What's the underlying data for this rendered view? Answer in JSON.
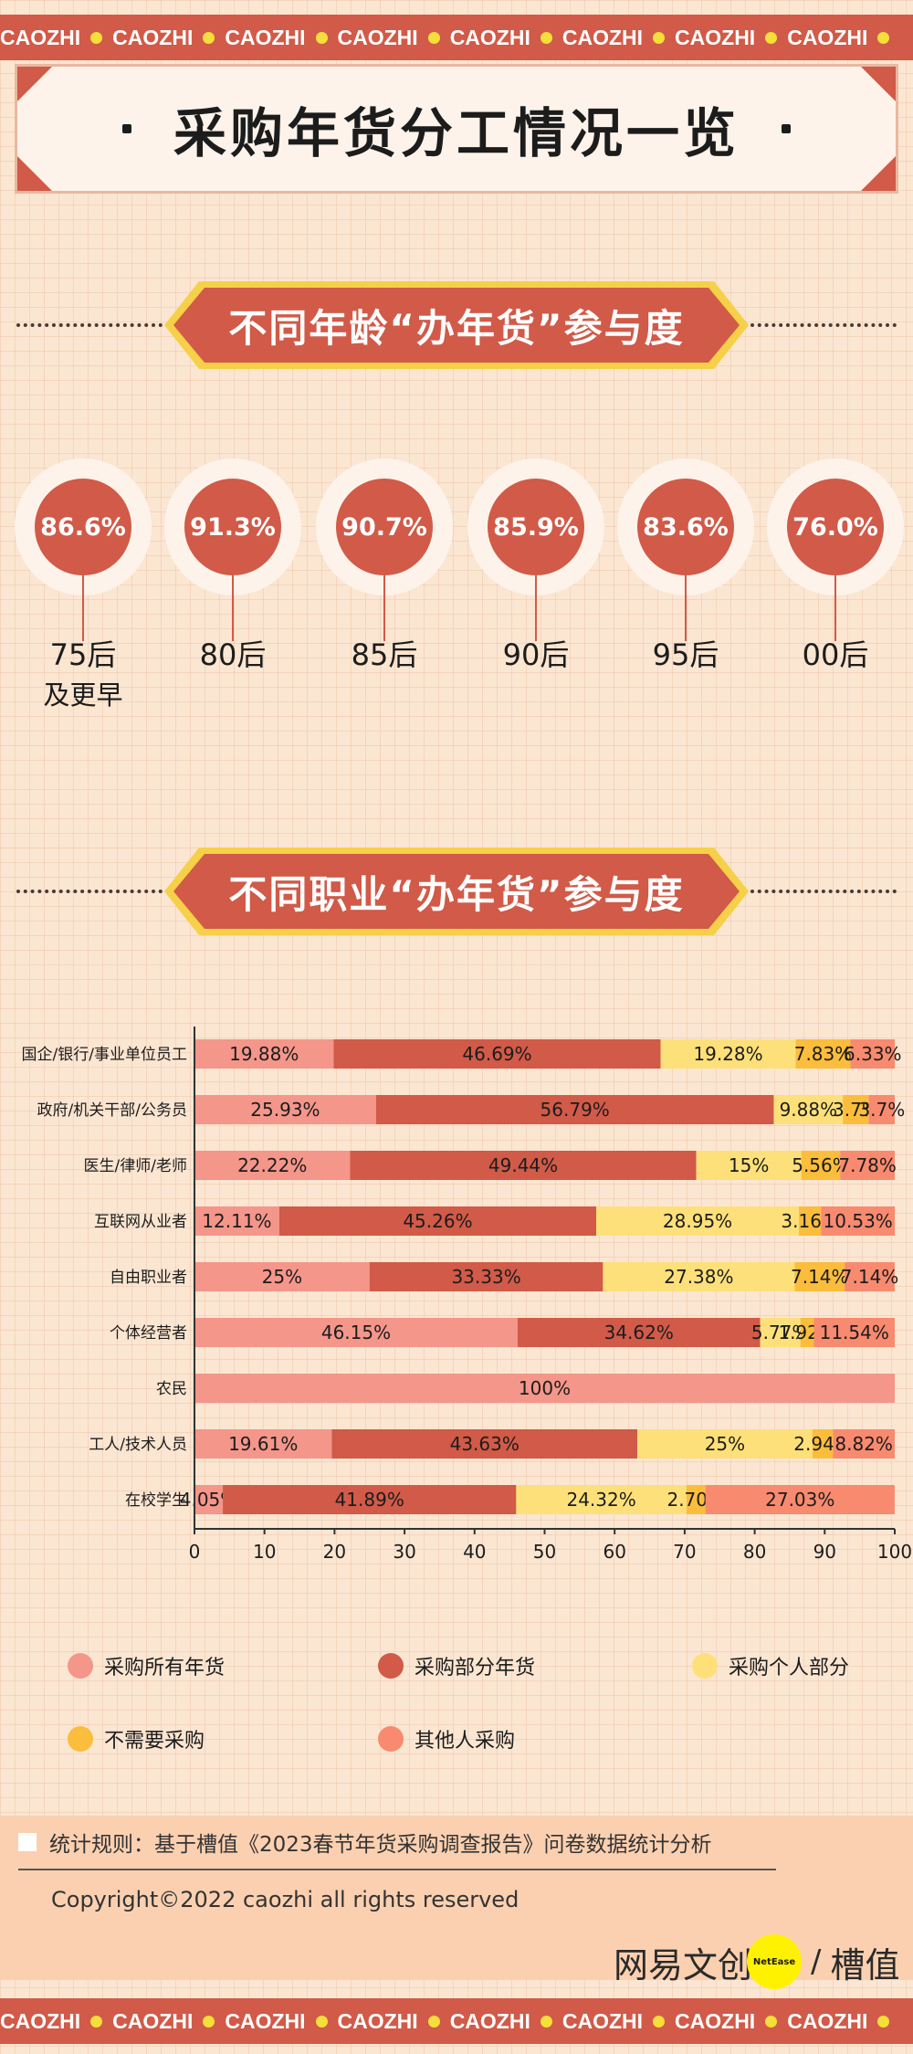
{
  "border_text": "CAOZHI",
  "banner": {
    "title": "采购年货分工情况一览"
  },
  "section_age": {
    "title": "不同年龄“办年货”参与度",
    "items": [
      {
        "value": "86.6%",
        "label": "75后",
        "sublabel": "及更早"
      },
      {
        "value": "91.3%",
        "label": "80后",
        "sublabel": ""
      },
      {
        "value": "90.7%",
        "label": "85后",
        "sublabel": ""
      },
      {
        "value": "85.9%",
        "label": "90后",
        "sublabel": ""
      },
      {
        "value": "83.6%",
        "label": "95后",
        "sublabel": ""
      },
      {
        "value": "76.0%",
        "label": "00后",
        "sublabel": ""
      }
    ]
  },
  "section_job": {
    "title": "不同职业“办年货”参与度"
  },
  "chart_data": {
    "type": "bar",
    "orientation": "horizontal",
    "stacked": true,
    "categories": [
      "国企/银行/事业单位员工",
      "政府/机关干部/公务员",
      "医生/律师/老师",
      "互联网从业者",
      "自由职业者",
      "个体经营者",
      "农民",
      "工人/技术人员",
      "在校学生"
    ],
    "series": [
      {
        "name": "采购所有年货",
        "color": "#f4968a",
        "values": [
          19.88,
          25.93,
          22.22,
          12.11,
          25,
          46.15,
          100,
          19.61,
          4.05
        ],
        "labels": [
          "19.88%",
          "25.93%",
          "22.22%",
          "12.11%",
          "25%",
          "46.15%",
          "100%",
          "19.61%",
          "4.05%"
        ]
      },
      {
        "name": "采购部分年货",
        "color": "#d15a48",
        "values": [
          46.69,
          56.79,
          49.44,
          45.26,
          33.33,
          34.62,
          0,
          43.63,
          41.89
        ],
        "labels": [
          "46.69%",
          "56.79%",
          "49.44%",
          "45.26%",
          "33.33%",
          "34.62%",
          "",
          "43.63%",
          "41.89%"
        ]
      },
      {
        "name": "采购个人部分",
        "color": "#fde07a",
        "values": [
          19.28,
          9.88,
          15,
          28.95,
          27.38,
          5.77,
          0,
          25,
          24.32
        ],
        "labels": [
          "19.28%",
          "9.88%",
          "15%",
          "28.95%",
          "27.38%",
          "5.77%",
          "",
          "25%",
          "24.32%"
        ]
      },
      {
        "name": "不需要采购",
        "color": "#fbbd3c",
        "values": [
          7.83,
          3.7,
          5.56,
          3.16,
          7.14,
          1.92,
          0,
          2.94,
          2.7
        ],
        "labels": [
          "7.83%",
          "3.7%",
          "5.56%",
          "3.16%",
          "7.14%",
          "1.92%",
          "",
          "2.94%",
          "2.70%"
        ]
      },
      {
        "name": "其他人采购",
        "color": "#f88a70",
        "values": [
          6.33,
          3.7,
          7.78,
          10.53,
          7.14,
          11.54,
          0,
          8.82,
          27.03
        ],
        "labels": [
          "6.33%",
          "3.7%",
          "7.78%",
          "10.53%",
          "7.14%",
          "11.54%",
          "",
          "8.82%",
          "27.03%"
        ]
      }
    ],
    "xlim": [
      0,
      100
    ],
    "xticks": [
      0,
      10,
      20,
      30,
      40,
      50,
      60,
      70,
      80,
      90,
      100
    ],
    "legend_position": "bottom",
    "grid": false
  },
  "footer": {
    "rule_text": "统计规则：基于槽值《2023春节年货采购调查报告》问卷数据统计分析",
    "copyright": "Copyright©2022 caozhi all rights reserved",
    "brand_left": "网易文创",
    "brand_badge": "NetEase",
    "brand_slash": "/",
    "brand_right": "槽值"
  }
}
